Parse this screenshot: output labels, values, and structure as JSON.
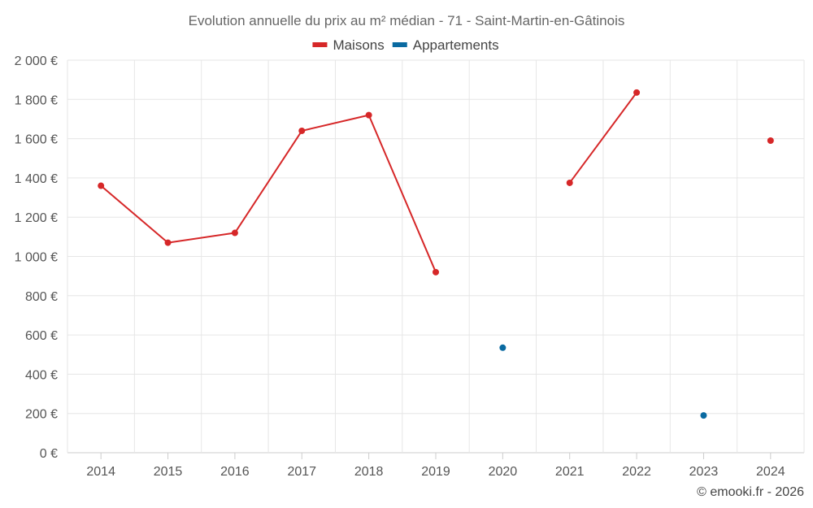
{
  "chart_data": {
    "type": "line",
    "title": "Evolution annuelle du prix au m² médian - 71 - Saint-Martin-en-Gâtinois",
    "xlabel": "",
    "ylabel": "",
    "categories": [
      "2014",
      "2015",
      "2016",
      "2017",
      "2018",
      "2019",
      "2020",
      "2021",
      "2022",
      "2023",
      "2024"
    ],
    "ylim": [
      0,
      2000
    ],
    "yticks": [
      0,
      200,
      400,
      600,
      800,
      1000,
      1200,
      1400,
      1600,
      1800,
      2000
    ],
    "ytick_labels": [
      "0 €",
      "200 €",
      "400 €",
      "600 €",
      "800 €",
      "1 000 €",
      "1 200 €",
      "1 400 €",
      "1 600 €",
      "1 800 €",
      "2 000 €"
    ],
    "grid": true,
    "legend_position": "top-center",
    "series": [
      {
        "name": "Maisons",
        "color": "#d62728",
        "values": [
          1360,
          1070,
          1120,
          1640,
          1720,
          920,
          null,
          1375,
          1835,
          null,
          1590
        ]
      },
      {
        "name": "Appartements",
        "color": "#0a6aa1",
        "values": [
          null,
          null,
          null,
          null,
          null,
          null,
          535,
          null,
          null,
          190,
          null
        ]
      }
    ]
  },
  "credit": "© emooki.fr - 2026"
}
